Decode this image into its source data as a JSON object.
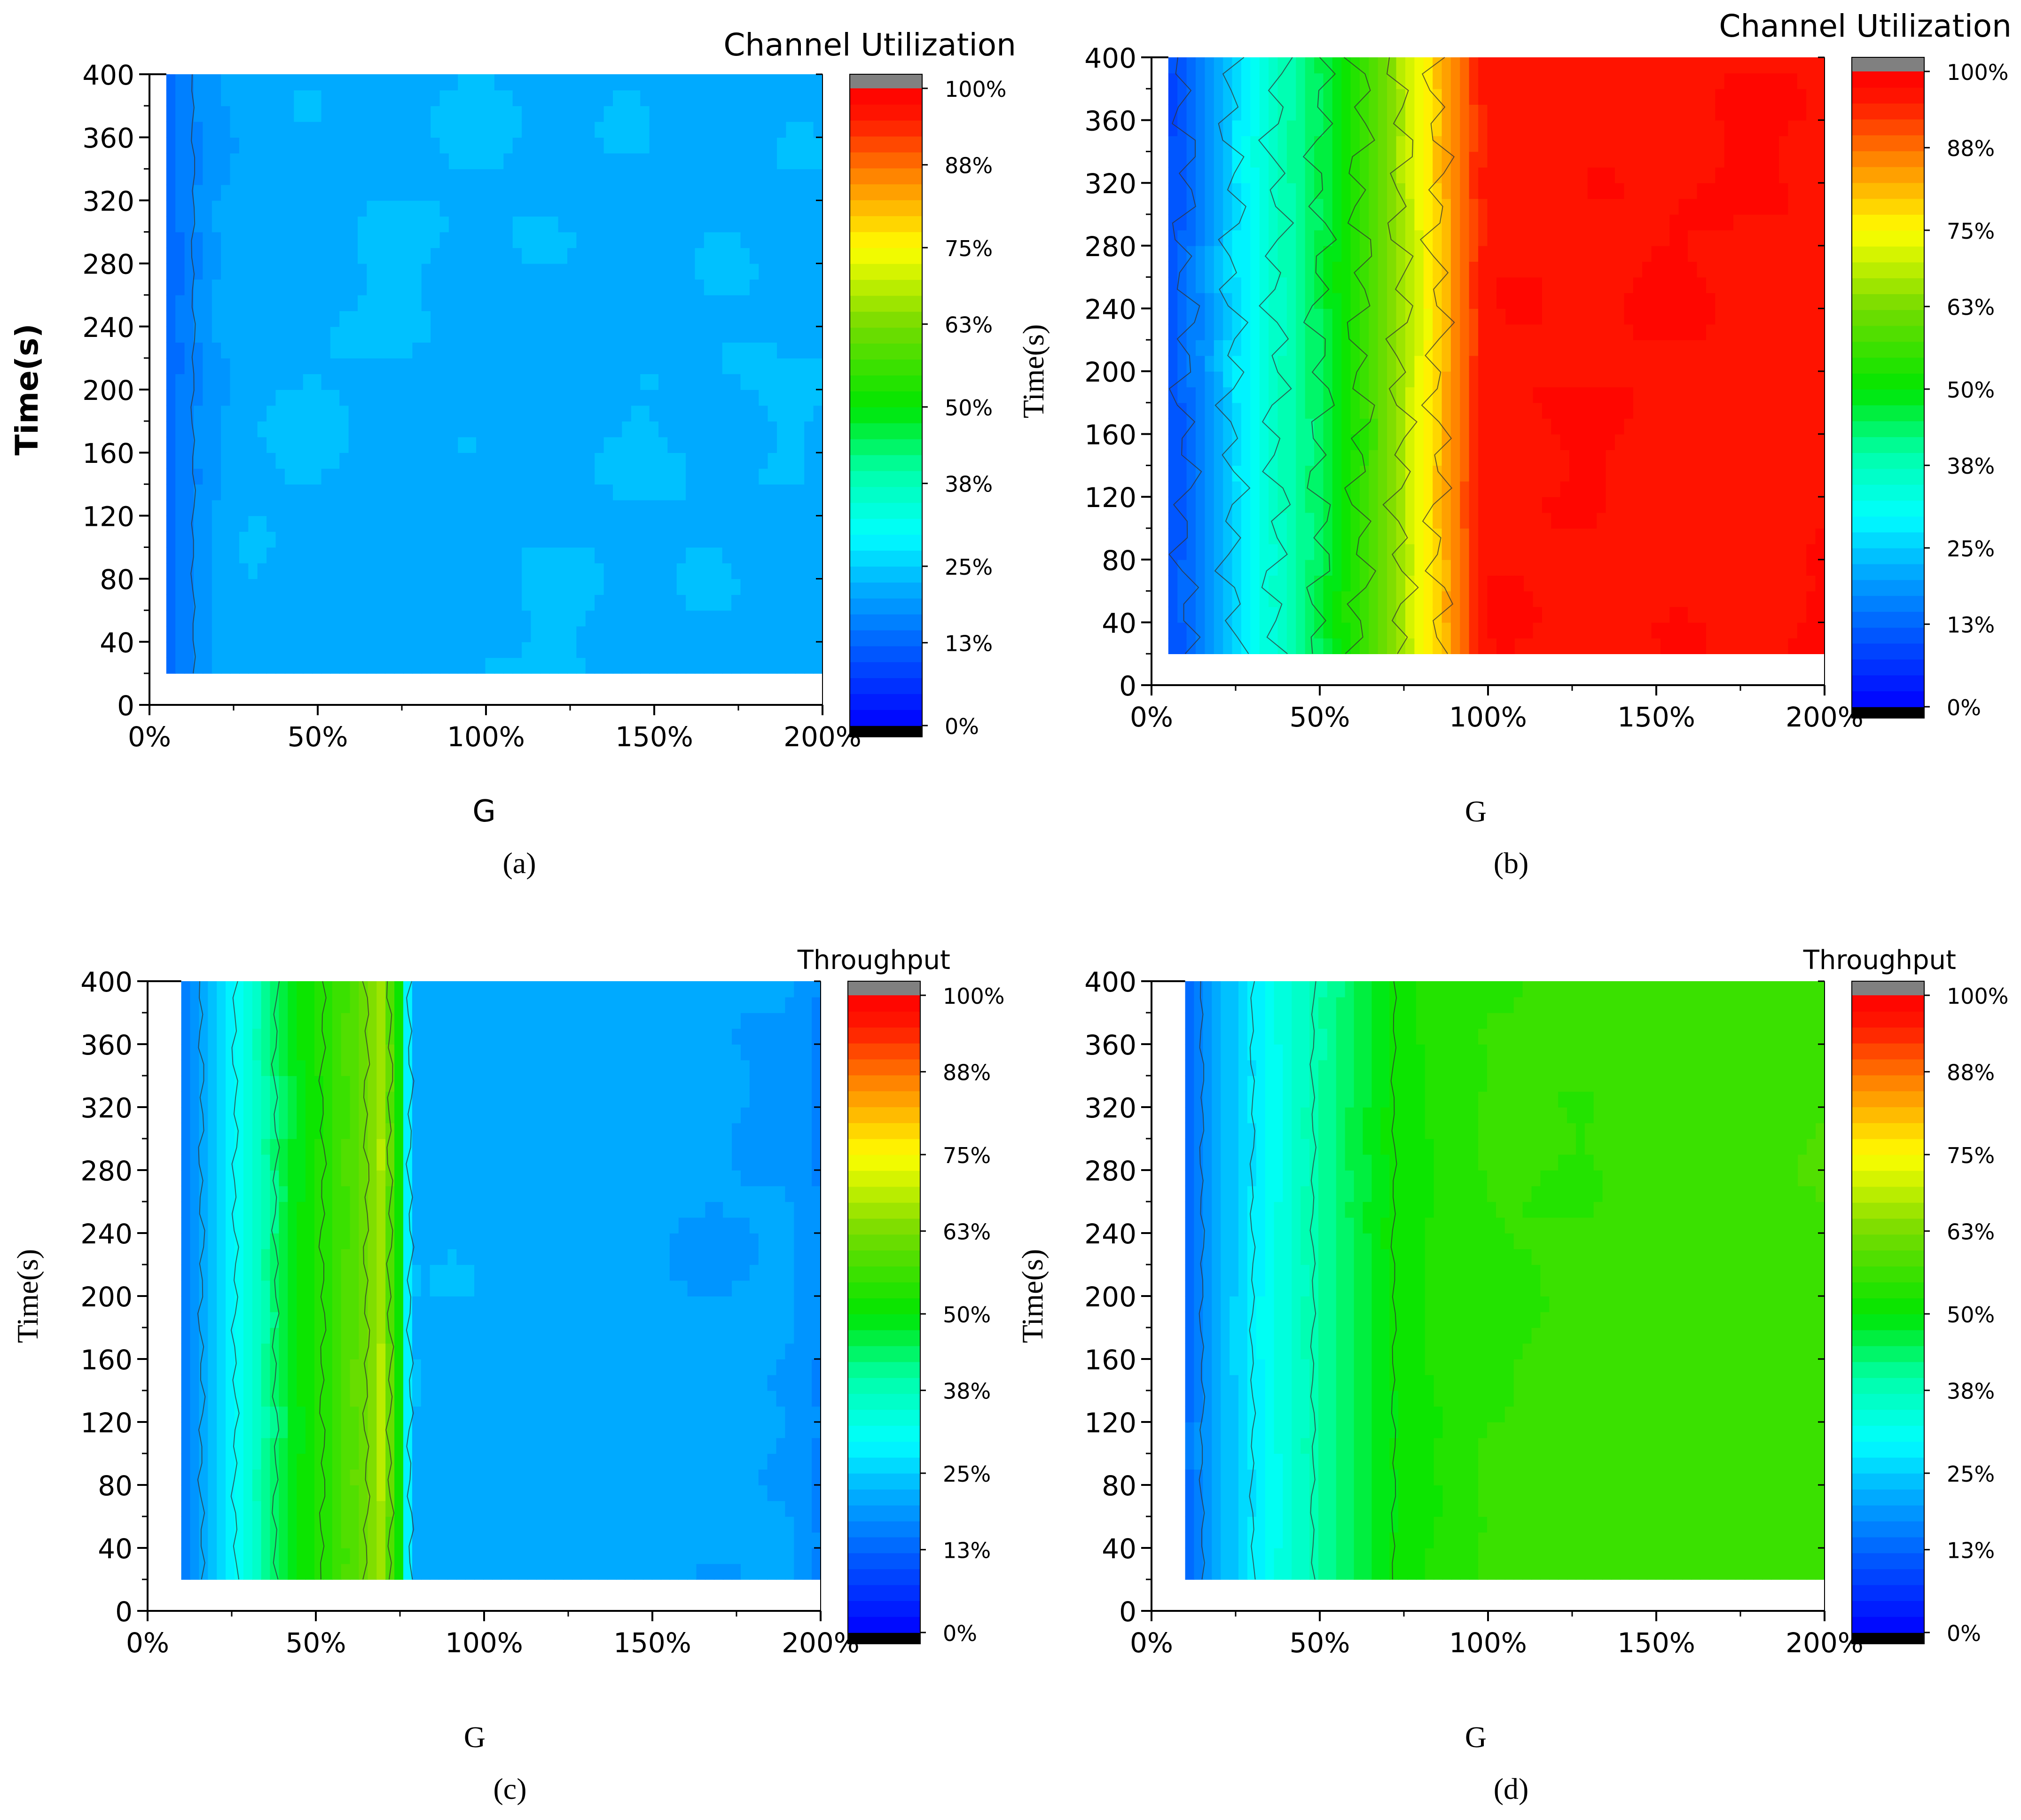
{
  "figure_labels": [
    "(a)",
    "(b)",
    "(c)",
    "(d)"
  ],
  "chart_data": [
    {
      "id": "a",
      "type": "heatmap",
      "panel_label": "(a)",
      "colorbar_title": "Channel Utilization",
      "colorbar_ticks": [
        "100%",
        "88%",
        "75%",
        "63%",
        "50%",
        "38%",
        "25%",
        "13%",
        "0%"
      ],
      "xlabel": "G",
      "ylabel": "Time(s)",
      "xticks": [
        "0%",
        "50%",
        "100%",
        "150%",
        "200%"
      ],
      "yticks": [
        "0",
        "40",
        "80",
        "120",
        "160",
        "200",
        "240",
        "280",
        "320",
        "360",
        "400"
      ],
      "xlim": [
        0,
        200
      ],
      "ylim": [
        0,
        400
      ],
      "x_data_start": 5,
      "y_data_start": 20,
      "profile_g": [
        5,
        8,
        10,
        13,
        15,
        20,
        30,
        200
      ],
      "profile_value": [
        13,
        15,
        16,
        17,
        18,
        20,
        22,
        22
      ],
      "noise": 1.5,
      "contour_g": [
        13
      ],
      "contour_wiggle": 0.5
    },
    {
      "id": "b",
      "type": "heatmap",
      "panel_label": "(b)",
      "colorbar_title": "Channel Utilization",
      "colorbar_ticks": [
        "100%",
        "88%",
        "75%",
        "63%",
        "50%",
        "38%",
        "25%",
        "13%",
        "0%"
      ],
      "xlabel": "G",
      "ylabel": "Time(s)",
      "xticks": [
        "0%",
        "50%",
        "100%",
        "150%",
        "200%"
      ],
      "yticks": [
        "0",
        "40",
        "80",
        "120",
        "160",
        "200",
        "240",
        "280",
        "320",
        "360",
        "400"
      ],
      "xlim": [
        0,
        200
      ],
      "ylim": [
        0,
        400
      ],
      "x_data_start": 5,
      "y_data_start": 20,
      "profile_g": [
        5,
        10,
        15,
        20,
        25,
        35,
        50,
        62,
        70,
        75,
        82,
        88,
        95,
        100,
        200
      ],
      "profile_value": [
        10,
        13,
        17,
        22,
        27,
        35,
        45,
        55,
        62,
        68,
        76,
        83,
        92,
        97,
        97
      ],
      "noise": 1.5,
      "contour_g": [
        10,
        24,
        37,
        50,
        62,
        74,
        85
      ],
      "contour_wiggle": 3.5
    },
    {
      "id": "c",
      "type": "heatmap",
      "panel_label": "(c)",
      "colorbar_title": "Throughput",
      "colorbar_ticks": [
        "100%",
        "88%",
        "75%",
        "63%",
        "50%",
        "38%",
        "25%",
        "13%",
        "0%"
      ],
      "xlabel": "G",
      "ylabel": "Time(s)",
      "xticks": [
        "0%",
        "50%",
        "100%",
        "150%",
        "200%"
      ],
      "yticks": [
        "0",
        "40",
        "80",
        "120",
        "160",
        "200",
        "240",
        "280",
        "320",
        "360",
        "400"
      ],
      "xlim": [
        0,
        200
      ],
      "ylim": [
        0,
        400
      ],
      "x_data_start": 10,
      "y_data_start": 20,
      "profile_g": [
        10,
        15,
        20,
        26,
        35,
        45,
        55,
        65,
        70,
        72,
        75,
        77,
        80,
        120,
        190,
        200
      ],
      "profile_value": [
        15,
        20,
        25,
        30,
        40,
        50,
        55,
        62,
        68,
        60,
        50,
        30,
        22,
        21,
        20,
        17
      ],
      "noise": 1.0,
      "contour_g": [
        16,
        26,
        38,
        52,
        65,
        72,
        78
      ],
      "contour_wiggle": 0.8
    },
    {
      "id": "d",
      "type": "heatmap",
      "panel_label": "(d)",
      "colorbar_title": "Throughput",
      "colorbar_ticks": [
        "100%",
        "88%",
        "75%",
        "63%",
        "50%",
        "38%",
        "25%",
        "13%",
        "0%"
      ],
      "xlabel": "G",
      "ylabel": "Time(s)",
      "xticks": [
        "0%",
        "50%",
        "100%",
        "150%",
        "200%"
      ],
      "yticks": [
        "0",
        "40",
        "80",
        "120",
        "160",
        "200",
        "240",
        "280",
        "320",
        "360",
        "400"
      ],
      "xlim": [
        0,
        200
      ],
      "ylim": [
        0,
        400
      ],
      "x_data_start": 10,
      "y_data_start": 20,
      "profile_g": [
        10,
        15,
        20,
        30,
        40,
        50,
        60,
        70,
        85,
        100,
        200
      ],
      "profile_value": [
        13,
        18,
        22,
        28,
        34,
        40,
        45,
        50,
        53,
        55,
        57
      ],
      "noise": 1.0,
      "contour_g": [
        15,
        30,
        48,
        72
      ],
      "contour_wiggle": 0.6
    }
  ]
}
